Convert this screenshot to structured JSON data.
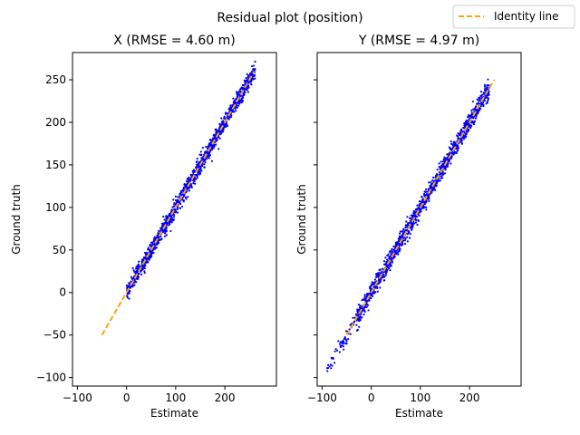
{
  "figure": {
    "suptitle": "Residual plot (position)",
    "legend": {
      "label": "Identity line",
      "placement": "top-right",
      "color": "#ffa500"
    }
  },
  "chart_data": [
    {
      "type": "scatter",
      "title": "X (RMSE = 4.60 m)",
      "xlabel": "Estimate",
      "ylabel": "Ground truth",
      "xlim": [
        -110,
        305
      ],
      "ylim": [
        -110,
        282
      ],
      "xticks": [
        -100,
        0,
        100,
        200
      ],
      "yticks": [
        -100,
        -50,
        0,
        50,
        100,
        150,
        200,
        250
      ],
      "show_ytick_labels": true,
      "grid": false,
      "series": [
        {
          "kind": "points",
          "color": "#0000ff",
          "summary": {
            "x_range": [
              0,
              262
            ],
            "spread_sd": 4.6
          }
        },
        {
          "name": "Identity line",
          "kind": "line",
          "color": "#ffa500",
          "x": [
            -50,
            260
          ],
          "y": [
            -50,
            260
          ]
        }
      ]
    },
    {
      "type": "scatter",
      "title": "Y (RMSE = 4.97 m)",
      "xlabel": "Estimate",
      "ylabel": "Ground truth",
      "xlim": [
        -110,
        305
      ],
      "ylim": [
        -110,
        282
      ],
      "xticks": [
        -100,
        0,
        100,
        200
      ],
      "yticks": [
        -100,
        -50,
        0,
        50,
        100,
        150,
        200,
        250
      ],
      "show_ytick_labels": false,
      "grid": false,
      "series": [
        {
          "kind": "points",
          "color": "#0000ff",
          "summary": {
            "x_range": [
              -90,
              240
            ],
            "spread_sd": 4.97
          }
        },
        {
          "name": "Identity line",
          "kind": "line",
          "color": "#ffa500",
          "x": [
            -50,
            250
          ],
          "y": [
            -50,
            250
          ]
        }
      ]
    }
  ]
}
